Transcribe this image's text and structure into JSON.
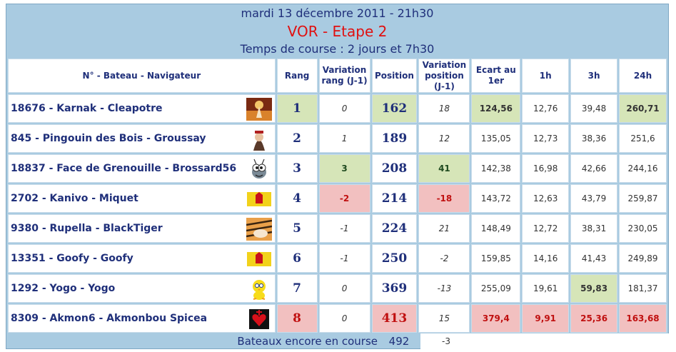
{
  "header": {
    "date": "mardi 13 décembre 2011 - 21h30",
    "title": "VOR - Etape 2",
    "race_time": "Temps de course : 2 jours et 7h30"
  },
  "columns": {
    "boat": "N° - Bateau - Navigateur",
    "rank": "Rang",
    "rank_var": "Variation rang (J-1)",
    "position": "Position",
    "pos_var": "Variation position (J-1)",
    "gap": "Ecart au 1er",
    "h1": "1h",
    "h3": "3h",
    "h24": "24h"
  },
  "rows": [
    {
      "boat": "18676 - Karnak - Cleapotre",
      "avatar": "fire-dancer-avatar",
      "rank": "1",
      "rank_var": "0",
      "position": "162",
      "pos_var": "18",
      "gap": "124,56",
      "h1": "12,76",
      "h3": "39,48",
      "h24": "260,71"
    },
    {
      "boat": "845 - Pingouin des Bois - Groussay",
      "avatar": "portrait-avatar",
      "rank": "2",
      "rank_var": "1",
      "position": "189",
      "pos_var": "12",
      "gap": "135,05",
      "h1": "12,73",
      "h3": "38,36",
      "h24": "251,6"
    },
    {
      "boat": "18837 - Face de Grenouille - Brossard56",
      "avatar": "cartoon-bug-avatar",
      "rank": "3",
      "rank_var": "3",
      "position": "208",
      "pos_var": "41",
      "gap": "142,38",
      "h1": "16,98",
      "h3": "42,66",
      "h24": "244,16"
    },
    {
      "boat": "2702 - Kanivo - Miquet",
      "avatar": "yellow-red-flag-avatar",
      "rank": "4",
      "rank_var": "-2",
      "position": "214",
      "pos_var": "-18",
      "gap": "143,72",
      "h1": "12,63",
      "h3": "43,79",
      "h24": "259,87"
    },
    {
      "boat": "9380 - Rupella - BlackTiger",
      "avatar": "tiger-avatar",
      "rank": "5",
      "rank_var": "-1",
      "position": "224",
      "pos_var": "21",
      "gap": "148,49",
      "h1": "12,72",
      "h3": "38,31",
      "h24": "230,05"
    },
    {
      "boat": "13351 - Goofy - Goofy",
      "avatar": "yellow-red-flag-avatar",
      "rank": "6",
      "rank_var": "-1",
      "position": "250",
      "pos_var": "-2",
      "gap": "159,85",
      "h1": "14,16",
      "h3": "41,43",
      "h24": "249,89"
    },
    {
      "boat": "1292 - Yogo - Yogo",
      "avatar": "tweety-bird-avatar",
      "rank": "7",
      "rank_var": "0",
      "position": "369",
      "pos_var": "-13",
      "gap": "255,09",
      "h1": "19,61",
      "h3": "59,83",
      "h24": "181,37"
    },
    {
      "boat": "8309 - Akmon6 - Akmonbou Spicea",
      "avatar": "red-heart-avatar",
      "rank": "8",
      "rank_var": "0",
      "position": "413",
      "pos_var": "15",
      "gap": "379,4",
      "h1": "9,91",
      "h3": "25,36",
      "h24": "163,68"
    }
  ],
  "footer": {
    "label": "Bateaux encore en course",
    "count": "492",
    "variation": "-3"
  },
  "colors": {
    "frame": "#a9cbe1",
    "title_red": "#e01010",
    "text_blue": "#1f2f7a",
    "highlight_green": "#d6e5b8",
    "highlight_red": "#f2c0c0"
  }
}
